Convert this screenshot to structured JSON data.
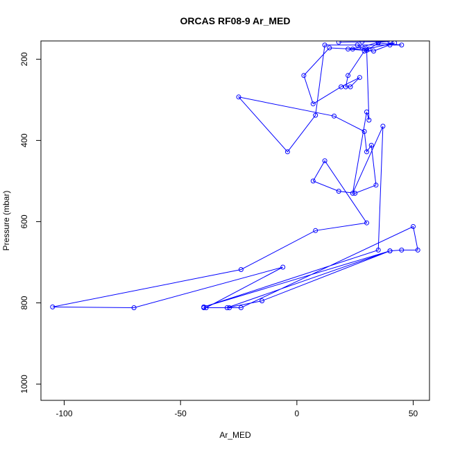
{
  "chart_data": {
    "type": "line",
    "title": "ORCAS RF08-9 Ar_MED",
    "xlabel": "Ar_MED",
    "ylabel": "Pressure (mbar)",
    "xlim": [
      -110,
      57
    ],
    "ylim": [
      1040,
      155
    ],
    "x_ticks": [
      -100,
      -50,
      0,
      50
    ],
    "y_ticks": [
      200,
      400,
      600,
      800,
      1000
    ],
    "grid": false,
    "legend": "none",
    "series_color": "#0000ff",
    "markers": "open-circle",
    "series": [
      {
        "x": [
          18,
          28,
          40,
          35,
          28,
          22,
          33,
          42,
          30,
          24,
          14,
          3,
          7,
          19,
          27,
          23,
          21,
          22,
          29,
          31,
          35,
          45,
          40,
          12,
          8,
          -4,
          -25,
          16,
          29,
          30,
          32,
          34,
          25,
          18,
          7,
          12,
          30,
          8,
          -24,
          -105,
          -70,
          -6,
          -39,
          -40,
          -29,
          -24,
          50,
          52,
          45,
          40,
          -30,
          -15,
          40,
          -40,
          35,
          37,
          24,
          30,
          31,
          30,
          26
        ],
        "y": [
          158,
          157,
          156,
          158,
          170,
          175,
          180,
          160,
          175,
          175,
          172,
          240,
          310,
          268,
          245,
          268,
          268,
          240,
          180,
          175,
          160,
          165,
          165,
          165,
          338,
          428,
          293,
          340,
          378,
          428,
          412,
          510,
          530,
          525,
          500,
          450,
          603,
          622,
          718,
          810,
          812,
          712,
          812,
          812,
          812,
          812,
          612,
          670,
          670,
          672,
          812,
          795,
          672,
          810,
          670,
          365,
          530,
          330,
          350,
          178,
          165
        ]
      }
    ]
  }
}
